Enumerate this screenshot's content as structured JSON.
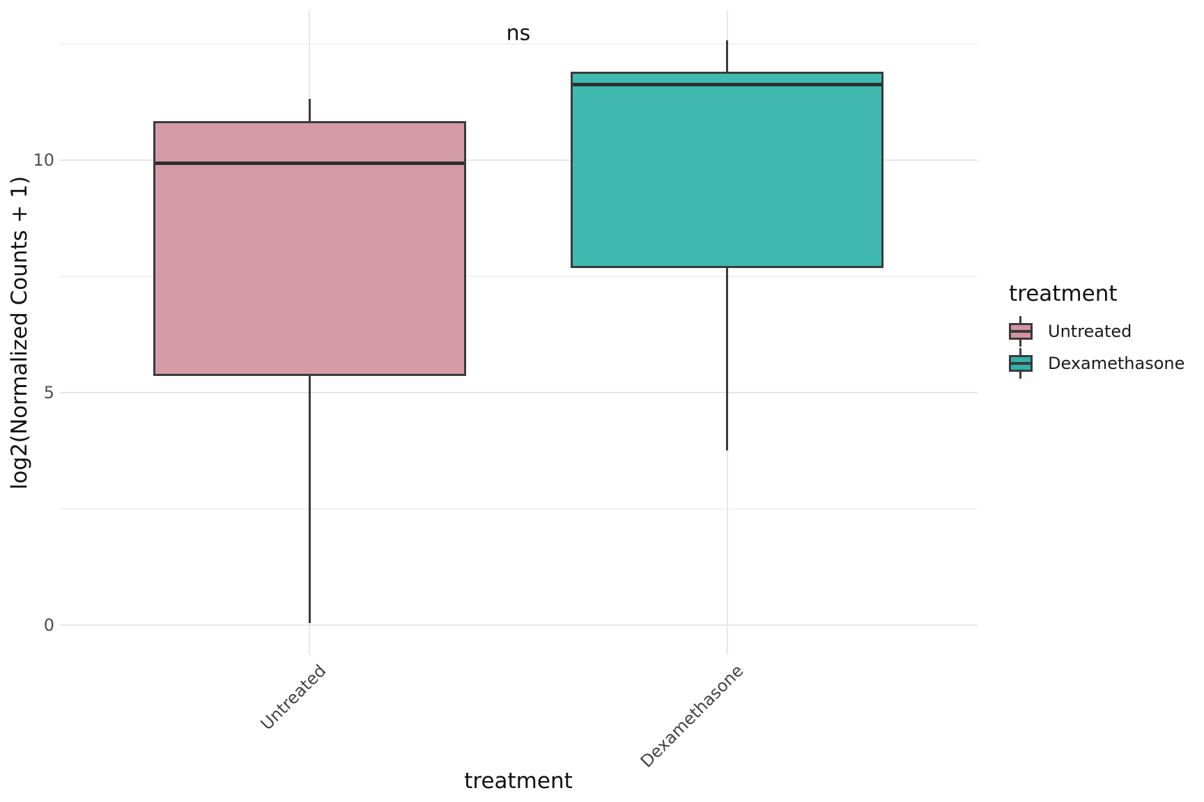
{
  "chart_data": {
    "type": "boxplot",
    "title": "",
    "xlabel": "treatment",
    "ylabel": "log2(Normalized Counts + 1)",
    "categories": [
      "Untreated",
      "Dexamethasone"
    ],
    "series": [
      {
        "name": "Untreated",
        "fill": "#D294A0",
        "whisker_min": 0.05,
        "q1": 5.36,
        "median": 9.94,
        "q3": 10.84,
        "whisker_max": 11.32
      },
      {
        "name": "Dexamethasone",
        "fill": "#32B4AA",
        "whisker_min": 3.76,
        "q1": 7.68,
        "median": 11.63,
        "q3": 11.9,
        "whisker_max": 12.58
      }
    ],
    "ylim": [
      -0.63,
      13.22
    ],
    "y_major_ticks": [
      {
        "value": 0,
        "label": "0"
      },
      {
        "value": 5,
        "label": "5"
      },
      {
        "value": 10,
        "label": "10"
      }
    ],
    "y_minor_ticks": [
      2.5,
      7.5,
      12.5
    ],
    "grid": true,
    "legend_position": "right",
    "annotation": {
      "text": "ns",
      "x": 1.5,
      "y": 12.73
    }
  },
  "legend": {
    "title": "treatment",
    "items": [
      {
        "label": "Untreated",
        "color": "#D294A0"
      },
      {
        "label": "Dexamethasone",
        "color": "#32B4AA"
      }
    ]
  },
  "style": {
    "background": "#FFFFFF",
    "box_border": "#3A3A3A",
    "median_color": "#2E2E2E",
    "whisker_color": "#3A3A3A",
    "grid_major": "#E7E7E7",
    "grid_minor": "#F1F1F1",
    "tick_label_color": "#4D4D4D",
    "axis_title_color": "#111111",
    "annotation_color": "#111111"
  }
}
